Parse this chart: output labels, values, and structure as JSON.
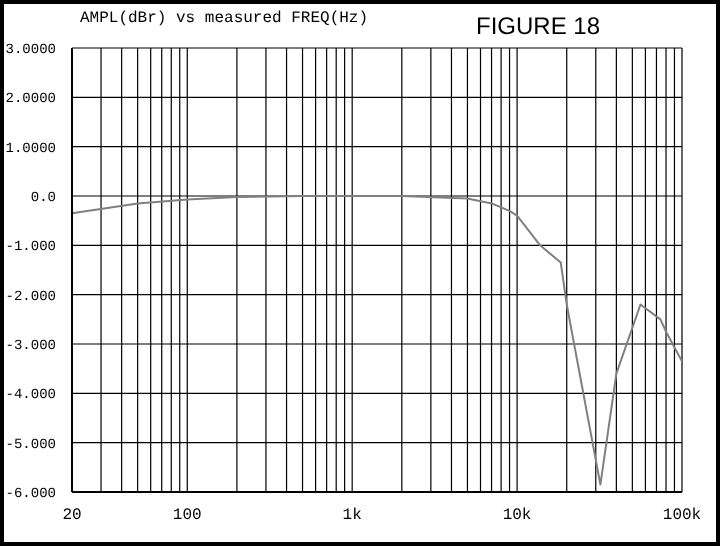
{
  "chart_data": {
    "type": "line",
    "title": "AMPL(dBr) vs measured FREQ(Hz)",
    "annotations": [
      "FIGURE 18"
    ],
    "x": [
      20,
      50,
      100,
      200,
      500,
      1000,
      2000,
      5000,
      7000,
      9000,
      10000,
      13800,
      18400,
      20000,
      32000,
      40000,
      56000,
      74000,
      80000,
      100000
    ],
    "series": [
      {
        "color": "#808080",
        "values": [
          -0.35,
          -0.15,
          -0.07,
          -0.02,
          0,
          0,
          0,
          -0.05,
          -0.15,
          -0.3,
          -0.4,
          -1.0,
          -1.35,
          -2.2,
          -5.85,
          -3.6,
          -2.2,
          -2.5,
          -2.75,
          -3.35
        ]
      }
    ],
    "xlim": [
      20,
      100000
    ],
    "log": "x",
    "xticks": [
      {
        "value": 20,
        "label": "20"
      },
      {
        "value": 30,
        "label": null
      },
      {
        "value": 40,
        "label": null
      },
      {
        "value": 50,
        "label": null
      },
      {
        "value": 60,
        "label": null
      },
      {
        "value": 70,
        "label": null
      },
      {
        "value": 80,
        "label": null
      },
      {
        "value": 90,
        "label": null
      },
      {
        "value": 100,
        "label": "100"
      },
      {
        "value": 200,
        "label": null
      },
      {
        "value": 300,
        "label": null
      },
      {
        "value": 400,
        "label": null
      },
      {
        "value": 500,
        "label": null
      },
      {
        "value": 600,
        "label": null
      },
      {
        "value": 700,
        "label": null
      },
      {
        "value": 800,
        "label": null
      },
      {
        "value": 900,
        "label": null
      },
      {
        "value": 1000,
        "label": "1k"
      },
      {
        "value": 2000,
        "label": null
      },
      {
        "value": 3000,
        "label": null
      },
      {
        "value": 4000,
        "label": null
      },
      {
        "value": 5000,
        "label": null
      },
      {
        "value": 6000,
        "label": null
      },
      {
        "value": 7000,
        "label": null
      },
      {
        "value": 8000,
        "label": null
      },
      {
        "value": 9000,
        "label": null
      },
      {
        "value": 10000,
        "label": "10k"
      },
      {
        "value": 20000,
        "label": null
      },
      {
        "value": 30000,
        "label": null
      },
      {
        "value": 40000,
        "label": null
      },
      {
        "value": 50000,
        "label": null
      },
      {
        "value": 60000,
        "label": null
      },
      {
        "value": 70000,
        "label": null
      },
      {
        "value": 80000,
        "label": null
      },
      {
        "value": 90000,
        "label": null
      },
      {
        "value": 100000,
        "label": "100k"
      }
    ],
    "ylim": [
      -6,
      3
    ],
    "yticks": [
      {
        "value": 3,
        "label": "3.0000"
      },
      {
        "value": 2,
        "label": "2.0000"
      },
      {
        "value": 1,
        "label": "1.0000"
      },
      {
        "value": 0,
        "label": "0.0"
      },
      {
        "value": -1,
        "label": "-1.000"
      },
      {
        "value": -2,
        "label": "-2.000"
      },
      {
        "value": -3,
        "label": "-3.000"
      },
      {
        "value": -4,
        "label": "-4.000"
      },
      {
        "value": -5,
        "label": "-5.000"
      },
      {
        "value": -6,
        "label": "-6.000"
      }
    ],
    "grid": true,
    "legend": false,
    "marker": "none",
    "line_style": "solid"
  }
}
